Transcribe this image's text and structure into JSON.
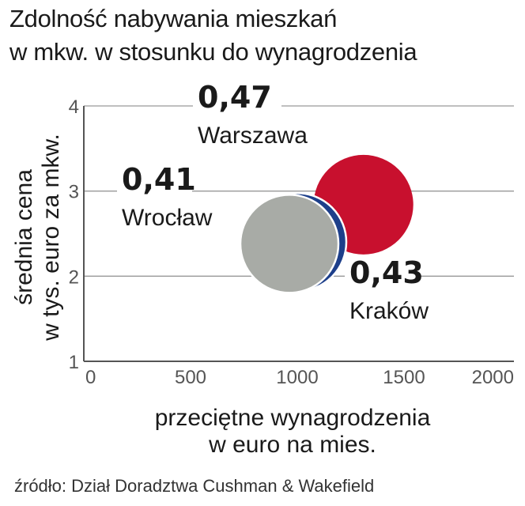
{
  "title": [
    "Zdolność nabywania mieszkań",
    "w mkw. w stosunku do wynagrodzenia"
  ],
  "source": "źródło: Dział Doradztwa Cushman & Wakefield",
  "chart_data": {
    "type": "scatter",
    "title": "Zdolność nabywania mieszkań w mkw. w stosunku do wynagrodzenia",
    "xlabel": [
      "przeciętne wynagrodzenia",
      "w euro na mies."
    ],
    "ylabel": [
      "średnia cena",
      "w tys. euro za mkw."
    ],
    "xlim": [
      0,
      2000
    ],
    "ylim": [
      1,
      4
    ],
    "xticks": [
      "0",
      "500",
      "1000",
      "1500",
      "2000"
    ],
    "yticks": [
      "1",
      "2",
      "3",
      "4"
    ],
    "grid": "horizontal",
    "points": [
      {
        "city": "Warszawa",
        "label": "0,47",
        "x": 1310,
        "y": 2.84,
        "color": "#c8102e"
      },
      {
        "city": "Kraków",
        "label": "0,43",
        "x": 1000,
        "y": 2.4,
        "color": "#1d3f8a"
      },
      {
        "city": "Wrocław",
        "label": "0,41",
        "x": 963,
        "y": 2.38,
        "color": "#a8aba6"
      }
    ]
  }
}
